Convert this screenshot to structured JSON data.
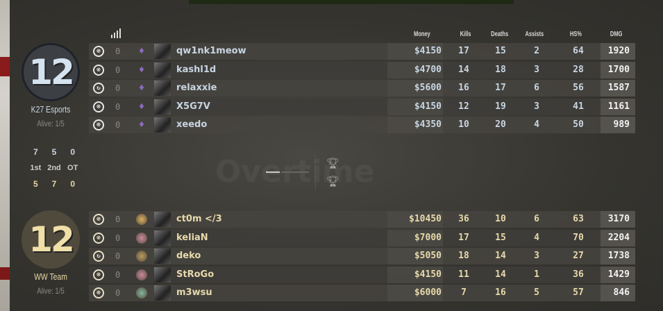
{
  "header": {
    "columns": [
      "Money",
      "Kills",
      "Deaths",
      "Assists",
      "HS%",
      "DMG"
    ]
  },
  "watermark": "Overtime",
  "ct_team": {
    "name": "K27 Esports",
    "score": "12",
    "alive": "Alive: 1/5",
    "color": "#c8d5e2",
    "players": [
      {
        "status": "defuse-kit-icon",
        "status_glyph": "⊗",
        "zero": "0",
        "name": "qw1nk1meow",
        "money": "$4150",
        "kills": "17",
        "deaths": "15",
        "assists": "2",
        "hs": "64",
        "dmg": "1920"
      },
      {
        "status": "defuse-kit-icon",
        "status_glyph": "⊗",
        "zero": "0",
        "name": "kashl1d",
        "money": "$4700",
        "kills": "14",
        "deaths": "18",
        "assists": "3",
        "hs": "28",
        "dmg": "1700"
      },
      {
        "status": "reload-icon",
        "status_glyph": "↻",
        "zero": "0",
        "name": "relaxxie",
        "money": "$5600",
        "kills": "16",
        "deaths": "17",
        "assists": "6",
        "hs": "56",
        "dmg": "1587"
      },
      {
        "status": "defuse-kit-icon",
        "status_glyph": "⊗",
        "zero": "0",
        "name": "X5G7V",
        "money": "$4150",
        "kills": "12",
        "deaths": "19",
        "assists": "3",
        "hs": "41",
        "dmg": "1161"
      },
      {
        "status": "defuse-kit-icon",
        "status_glyph": "⊗",
        "zero": "0",
        "name": "xeedo",
        "money": "$4350",
        "kills": "10",
        "deaths": "20",
        "assists": "4",
        "hs": "50",
        "dmg": "989"
      }
    ]
  },
  "halves": {
    "ct": [
      "7",
      "5",
      "0"
    ],
    "labels": [
      "1st",
      "2nd",
      "OT"
    ],
    "t": [
      "5",
      "7",
      "0"
    ]
  },
  "t_team": {
    "name": "WW Team",
    "score": "12",
    "alive": "Alive: 1/5",
    "color": "#e7d9ab",
    "players": [
      {
        "status": "defuse-kit-icon",
        "status_glyph": "⊗",
        "zero": "0",
        "name": "ct0m </3",
        "money": "$10450",
        "kills": "36",
        "deaths": "10",
        "assists": "6",
        "hs": "63",
        "dmg": "3170",
        "rank_color": "#d8b060"
      },
      {
        "status": "defuse-kit-icon",
        "status_glyph": "⊗",
        "zero": "0",
        "name": "keliaN",
        "money": "$7000",
        "kills": "17",
        "deaths": "15",
        "assists": "4",
        "hs": "70",
        "dmg": "2204",
        "rank_color": "#c88aa0"
      },
      {
        "status": "reload-icon",
        "status_glyph": "↻",
        "zero": "0",
        "name": "deko",
        "money": "$5050",
        "kills": "18",
        "deaths": "14",
        "assists": "3",
        "hs": "27",
        "dmg": "1738",
        "rank_color": "#b89a60"
      },
      {
        "status": "defuse-kit-icon",
        "status_glyph": "⊗",
        "zero": "0",
        "name": "StRoGo",
        "money": "$4150",
        "kills": "11",
        "deaths": "14",
        "assists": "1",
        "hs": "36",
        "dmg": "1429",
        "rank_color": "#c88aa0"
      },
      {
        "status": "defuse-kit-icon",
        "status_glyph": "⊗",
        "zero": "0",
        "name": "m3wsu",
        "money": "$6000",
        "kills": "7",
        "deaths": "16",
        "assists": "5",
        "hs": "57",
        "dmg": "846",
        "rank_color": "#7fb9a0"
      }
    ]
  }
}
